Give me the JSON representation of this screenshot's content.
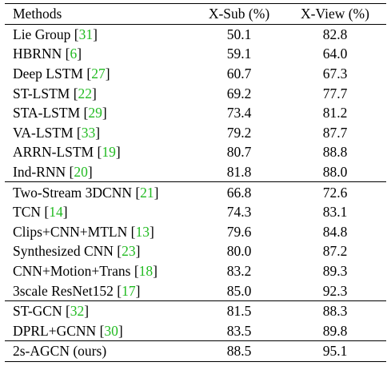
{
  "table": {
    "headers": [
      "Methods",
      "X-Sub (%)",
      "X-View (%)"
    ],
    "groups": [
      [
        {
          "method": "Lie Group",
          "ref": "31",
          "xsub": "50.1",
          "xview": "82.8"
        },
        {
          "method": "HBRNN",
          "ref": "6",
          "xsub": "59.1",
          "xview": "64.0"
        },
        {
          "method": "Deep LSTM",
          "ref": "27",
          "xsub": "60.7",
          "xview": "67.3"
        },
        {
          "method": "ST-LSTM",
          "ref": "22",
          "xsub": "69.2",
          "xview": "77.7"
        },
        {
          "method": "STA-LSTM",
          "ref": "29",
          "xsub": "73.4",
          "xview": "81.2"
        },
        {
          "method": "VA-LSTM",
          "ref": "33",
          "xsub": "79.2",
          "xview": "87.7"
        },
        {
          "method": "ARRN-LSTM",
          "ref": "19",
          "xsub": "80.7",
          "xview": "88.8"
        },
        {
          "method": "Ind-RNN",
          "ref": "20",
          "xsub": "81.8",
          "xview": "88.0"
        }
      ],
      [
        {
          "method": "Two-Stream 3DCNN",
          "ref": "21",
          "xsub": "66.8",
          "xview": "72.6"
        },
        {
          "method": "TCN",
          "ref": "14",
          "xsub": "74.3",
          "xview": "83.1"
        },
        {
          "method": "Clips+CNN+MTLN",
          "ref": "13",
          "xsub": "79.6",
          "xview": "84.8"
        },
        {
          "method": "Synthesized CNN",
          "ref": "23",
          "xsub": "80.0",
          "xview": "87.2"
        },
        {
          "method": "CNN+Motion+Trans",
          "ref": "18",
          "xsub": "83.2",
          "xview": "89.3"
        },
        {
          "method": "3scale ResNet152",
          "ref": "17",
          "xsub": "85.0",
          "xview": "92.3"
        }
      ],
      [
        {
          "method": "ST-GCN",
          "ref": "32",
          "xsub": "81.5",
          "xview": "88.3"
        },
        {
          "method": "DPRL+GCNN",
          "ref": "30",
          "xsub": "83.5",
          "xview": "89.8"
        }
      ],
      [
        {
          "method": "2s-AGCN (ours)",
          "ref": null,
          "xsub": "88.5",
          "xview": "95.1"
        }
      ]
    ]
  },
  "colors": {
    "reference_link": "#22bb22",
    "text": "#000000",
    "background": "#ffffff"
  }
}
